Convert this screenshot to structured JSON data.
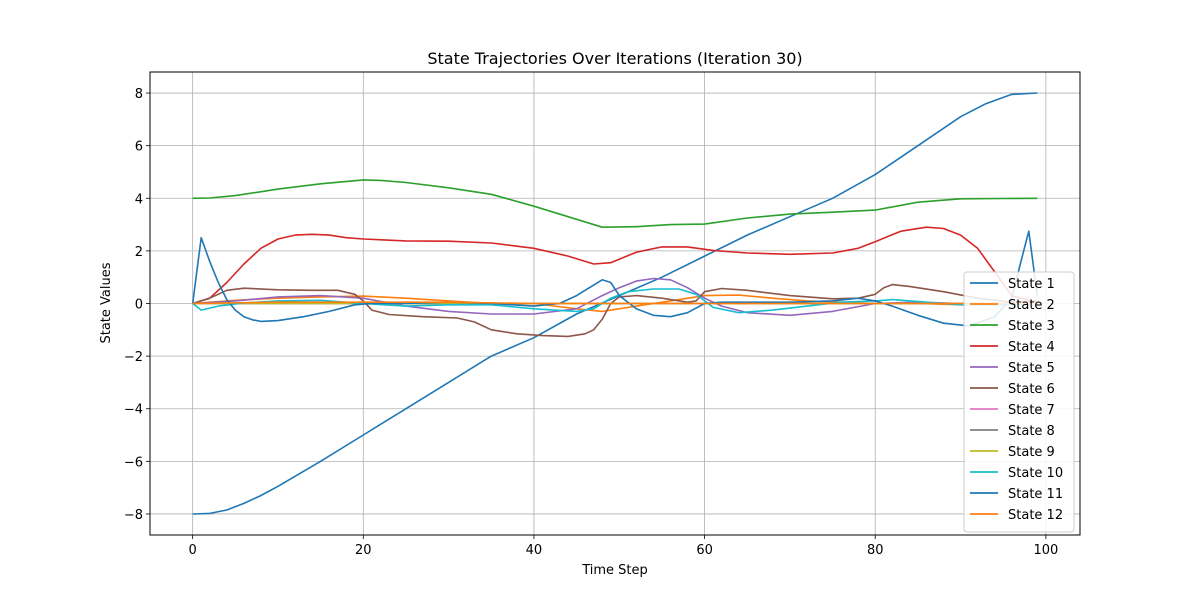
{
  "chart_data": {
    "type": "line",
    "title": "State Trajectories Over Iterations (Iteration 30)",
    "xlabel": "Time Step",
    "ylabel": "State Values",
    "xlim": [
      -5,
      104
    ],
    "ylim": [
      -8.8,
      8.8
    ],
    "xticks": [
      0,
      20,
      40,
      60,
      80,
      100
    ],
    "yticks": [
      -8,
      -6,
      -4,
      -2,
      0,
      2,
      4,
      6,
      8
    ],
    "grid": true,
    "legend_position": "lower-right",
    "series": [
      {
        "name": "State 1",
        "color": "#1f77b4",
        "points": [
          [
            0,
            -8
          ],
          [
            2,
            -7.98
          ],
          [
            4,
            -7.85
          ],
          [
            6,
            -7.6
          ],
          [
            8,
            -7.3
          ],
          [
            10,
            -6.95
          ],
          [
            15,
            -6
          ],
          [
            20,
            -5
          ],
          [
            25,
            -4
          ],
          [
            30,
            -3
          ],
          [
            35,
            -2
          ],
          [
            40,
            -1.3
          ],
          [
            45,
            -0.4
          ],
          [
            50,
            0.3
          ],
          [
            55,
            1.0
          ],
          [
            60,
            1.8
          ],
          [
            65,
            2.6
          ],
          [
            70,
            3.3
          ],
          [
            75,
            4.0
          ],
          [
            80,
            4.9
          ],
          [
            85,
            6.0
          ],
          [
            90,
            7.1
          ],
          [
            93,
            7.6
          ],
          [
            96,
            7.95
          ],
          [
            99,
            8
          ]
        ]
      },
      {
        "name": "State 2",
        "color": "#ff7f0e",
        "points": [
          [
            0,
            0
          ],
          [
            5,
            0.12
          ],
          [
            10,
            0.2
          ],
          [
            15,
            0.25
          ],
          [
            20,
            0.28
          ],
          [
            25,
            0.2
          ],
          [
            30,
            0.1
          ],
          [
            35,
            0
          ],
          [
            40,
            0
          ],
          [
            45,
            -0.2
          ],
          [
            48,
            -0.3
          ],
          [
            52,
            -0.1
          ],
          [
            56,
            0.1
          ],
          [
            60,
            0.3
          ],
          [
            64,
            0.32
          ],
          [
            68,
            0.2
          ],
          [
            72,
            0.1
          ],
          [
            76,
            0.05
          ],
          [
            80,
            0
          ],
          [
            85,
            0
          ],
          [
            90,
            -0.05
          ],
          [
            95,
            0
          ],
          [
            99,
            0
          ]
        ]
      },
      {
        "name": "State 3",
        "color": "#2ca02c",
        "points": [
          [
            0,
            4
          ],
          [
            2,
            4.01
          ],
          [
            5,
            4.1
          ],
          [
            10,
            4.35
          ],
          [
            15,
            4.55
          ],
          [
            20,
            4.7
          ],
          [
            22,
            4.68
          ],
          [
            25,
            4.6
          ],
          [
            30,
            4.4
          ],
          [
            35,
            4.15
          ],
          [
            40,
            3.7
          ],
          [
            45,
            3.2
          ],
          [
            48,
            2.9
          ],
          [
            52,
            2.92
          ],
          [
            56,
            3.0
          ],
          [
            60,
            3.02
          ],
          [
            65,
            3.25
          ],
          [
            70,
            3.4
          ],
          [
            75,
            3.47
          ],
          [
            80,
            3.55
          ],
          [
            85,
            3.85
          ],
          [
            90,
            3.98
          ],
          [
            95,
            3.99
          ],
          [
            99,
            4.0
          ]
        ]
      },
      {
        "name": "State 4",
        "color": "#d62728",
        "points": [
          [
            0,
            0
          ],
          [
            2,
            0.2
          ],
          [
            4,
            0.8
          ],
          [
            6,
            1.5
          ],
          [
            8,
            2.1
          ],
          [
            10,
            2.45
          ],
          [
            12,
            2.6
          ],
          [
            14,
            2.63
          ],
          [
            16,
            2.6
          ],
          [
            18,
            2.5
          ],
          [
            20,
            2.45
          ],
          [
            25,
            2.38
          ],
          [
            30,
            2.37
          ],
          [
            35,
            2.3
          ],
          [
            40,
            2.1
          ],
          [
            44,
            1.8
          ],
          [
            47,
            1.5
          ],
          [
            49,
            1.55
          ],
          [
            52,
            1.95
          ],
          [
            55,
            2.15
          ],
          [
            58,
            2.15
          ],
          [
            61,
            2.02
          ],
          [
            65,
            1.92
          ],
          [
            70,
            1.87
          ],
          [
            75,
            1.92
          ],
          [
            78,
            2.1
          ],
          [
            80,
            2.35
          ],
          [
            83,
            2.75
          ],
          [
            86,
            2.9
          ],
          [
            88,
            2.85
          ],
          [
            90,
            2.6
          ],
          [
            92,
            2.1
          ],
          [
            94,
            1.2
          ],
          [
            96,
            0.3
          ],
          [
            99,
            0.05
          ]
        ]
      },
      {
        "name": "State 5",
        "color": "#9467bd",
        "points": [
          [
            0,
            0
          ],
          [
            5,
            0.1
          ],
          [
            10,
            0.25
          ],
          [
            15,
            0.3
          ],
          [
            20,
            0.2
          ],
          [
            25,
            -0.1
          ],
          [
            30,
            -0.3
          ],
          [
            35,
            -0.4
          ],
          [
            40,
            -0.4
          ],
          [
            45,
            -0.2
          ],
          [
            48,
            0.3
          ],
          [
            50,
            0.6
          ],
          [
            52,
            0.85
          ],
          [
            54,
            0.95
          ],
          [
            56,
            0.9
          ],
          [
            58,
            0.6
          ],
          [
            60,
            0.2
          ],
          [
            62,
            -0.1
          ],
          [
            65,
            -0.35
          ],
          [
            70,
            -0.45
          ],
          [
            75,
            -0.3
          ],
          [
            80,
            0
          ],
          [
            85,
            0.05
          ],
          [
            90,
            0
          ],
          [
            99,
            0
          ]
        ]
      },
      {
        "name": "State 6",
        "color": "#8c564b",
        "points": [
          [
            0,
            0
          ],
          [
            2,
            0.2
          ],
          [
            4,
            0.5
          ],
          [
            6,
            0.58
          ],
          [
            10,
            0.52
          ],
          [
            14,
            0.5
          ],
          [
            17,
            0.5
          ],
          [
            19,
            0.35
          ],
          [
            20,
            0.1
          ],
          [
            21,
            -0.25
          ],
          [
            23,
            -0.42
          ],
          [
            27,
            -0.5
          ],
          [
            31,
            -0.55
          ],
          [
            33,
            -0.7
          ],
          [
            35,
            -1.0
          ],
          [
            38,
            -1.15
          ],
          [
            41,
            -1.22
          ],
          [
            44,
            -1.25
          ],
          [
            46,
            -1.15
          ],
          [
            47,
            -1.0
          ],
          [
            48,
            -0.6
          ],
          [
            49,
            0
          ],
          [
            50,
            0.25
          ],
          [
            52,
            0.3
          ],
          [
            55,
            0.2
          ],
          [
            58,
            0.05
          ],
          [
            59,
            0.1
          ],
          [
            60,
            0.45
          ],
          [
            62,
            0.57
          ],
          [
            65,
            0.5
          ],
          [
            70,
            0.3
          ],
          [
            75,
            0.18
          ],
          [
            78,
            0.2
          ],
          [
            80,
            0.35
          ],
          [
            81,
            0.6
          ],
          [
            82,
            0.72
          ],
          [
            84,
            0.65
          ],
          [
            88,
            0.45
          ],
          [
            92,
            0.2
          ],
          [
            96,
            0.05
          ],
          [
            99,
            0.1
          ]
        ]
      },
      {
        "name": "State 7",
        "color": "#e377c2",
        "points": [
          [
            0,
            0
          ],
          [
            10,
            0
          ],
          [
            20,
            0
          ],
          [
            30,
            0
          ],
          [
            40,
            0
          ],
          [
            50,
            0
          ],
          [
            60,
            0
          ],
          [
            70,
            0
          ],
          [
            80,
            0
          ],
          [
            90,
            0
          ],
          [
            99,
            0
          ]
        ]
      },
      {
        "name": "State 8",
        "color": "#7f7f7f",
        "points": [
          [
            0,
            0
          ],
          [
            10,
            0
          ],
          [
            20,
            0
          ],
          [
            30,
            0
          ],
          [
            40,
            0
          ],
          [
            50,
            0
          ],
          [
            60,
            0
          ],
          [
            70,
            0
          ],
          [
            80,
            0
          ],
          [
            90,
            0
          ],
          [
            99,
            0
          ]
        ]
      },
      {
        "name": "State 9",
        "color": "#bcbd22",
        "points": [
          [
            0,
            0
          ],
          [
            10,
            0
          ],
          [
            20,
            0
          ],
          [
            30,
            0
          ],
          [
            40,
            0
          ],
          [
            50,
            0
          ],
          [
            60,
            0
          ],
          [
            70,
            0
          ],
          [
            80,
            0
          ],
          [
            90,
            0
          ],
          [
            99,
            0
          ]
        ]
      },
      {
        "name": "State 10",
        "color": "#17becf",
        "points": [
          [
            0,
            0
          ],
          [
            1,
            -0.25
          ],
          [
            3,
            -0.1
          ],
          [
            6,
            0.02
          ],
          [
            10,
            0.1
          ],
          [
            15,
            0.12
          ],
          [
            20,
            0
          ],
          [
            25,
            -0.1
          ],
          [
            30,
            -0.05
          ],
          [
            35,
            -0.05
          ],
          [
            40,
            -0.2
          ],
          [
            45,
            -0.3
          ],
          [
            47,
            -0.2
          ],
          [
            49,
            0.2
          ],
          [
            51,
            0.45
          ],
          [
            54,
            0.55
          ],
          [
            57,
            0.55
          ],
          [
            59,
            0.35
          ],
          [
            61,
            -0.15
          ],
          [
            64,
            -0.35
          ],
          [
            68,
            -0.25
          ],
          [
            72,
            -0.1
          ],
          [
            76,
            0.05
          ],
          [
            80,
            0.1
          ],
          [
            82,
            0.15
          ],
          [
            86,
            0.05
          ],
          [
            90,
            -0.05
          ],
          [
            95,
            -0.05
          ],
          [
            99,
            0
          ]
        ]
      },
      {
        "name": "State 11",
        "color": "#1f77b4",
        "points": [
          [
            0,
            0
          ],
          [
            1,
            2.5
          ],
          [
            2,
            1.6
          ],
          [
            3,
            0.8
          ],
          [
            4,
            0.15
          ],
          [
            5,
            -0.25
          ],
          [
            6,
            -0.5
          ],
          [
            7,
            -0.62
          ],
          [
            8,
            -0.68
          ],
          [
            10,
            -0.65
          ],
          [
            13,
            -0.5
          ],
          [
            16,
            -0.3
          ],
          [
            19,
            -0.05
          ],
          [
            21,
            0
          ],
          [
            25,
            0
          ],
          [
            30,
            0.05
          ],
          [
            35,
            0
          ],
          [
            40,
            -0.1
          ],
          [
            43,
            0
          ],
          [
            45,
            0.3
          ],
          [
            47,
            0.7
          ],
          [
            48,
            0.9
          ],
          [
            49,
            0.8
          ],
          [
            50,
            0.3
          ],
          [
            52,
            -0.2
          ],
          [
            54,
            -0.45
          ],
          [
            56,
            -0.5
          ],
          [
            58,
            -0.35
          ],
          [
            60,
            0
          ],
          [
            62,
            0.05
          ],
          [
            70,
            0.05
          ],
          [
            75,
            0.1
          ],
          [
            78,
            0.2
          ],
          [
            80,
            0.1
          ],
          [
            82,
            -0.1
          ],
          [
            85,
            -0.45
          ],
          [
            88,
            -0.75
          ],
          [
            91,
            -0.85
          ],
          [
            94,
            -0.5
          ],
          [
            96,
            0.2
          ],
          [
            97,
            1.5
          ],
          [
            98,
            2.75
          ],
          [
            99,
            0.3
          ]
        ]
      },
      {
        "name": "State 12",
        "color": "#ff7f0e",
        "points": [
          [
            0,
            0
          ],
          [
            10,
            0.05
          ],
          [
            20,
            0.05
          ],
          [
            30,
            0.05
          ],
          [
            40,
            0
          ],
          [
            50,
            0
          ],
          [
            60,
            0
          ],
          [
            70,
            0
          ],
          [
            80,
            0
          ],
          [
            90,
            0
          ],
          [
            99,
            0
          ]
        ]
      }
    ]
  }
}
